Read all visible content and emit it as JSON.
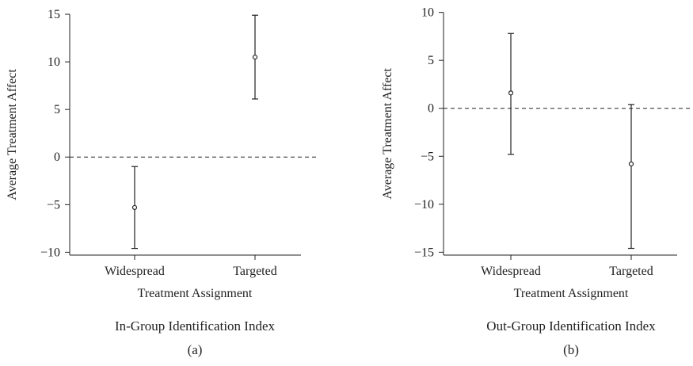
{
  "chart_data": [
    {
      "type": "errorbar",
      "xlabel": "Treatment Assignment",
      "ylabel": "Average Treatment Affect",
      "caption": "In-Group Identification Index",
      "sublabel": "(a)",
      "categories": [
        "Widespread",
        "Targeted"
      ],
      "points": [
        {
          "category": "Widespread",
          "estimate": -5.3,
          "lower": -9.6,
          "upper": -1.0
        },
        {
          "category": "Targeted",
          "estimate": 10.5,
          "upper": 14.9,
          "lower": 6.1
        }
      ],
      "yticks": [
        -10,
        -5,
        0,
        5,
        10,
        15
      ],
      "ylim": [
        -10.3,
        15.5
      ],
      "reference_line": 0,
      "grid": false
    },
    {
      "type": "errorbar",
      "xlabel": "Treatment Assignment",
      "ylabel": "Average Treatment Affect",
      "caption": "Out-Group Identification Index",
      "sublabel": "(b)",
      "categories": [
        "Widespread",
        "Targeted"
      ],
      "points": [
        {
          "category": "Widespread",
          "estimate": 1.6,
          "lower": -4.8,
          "upper": 7.8
        },
        {
          "category": "Targeted",
          "estimate": -5.8,
          "lower": -14.6,
          "upper": 0.4
        }
      ],
      "yticks": [
        -15,
        -10,
        -5,
        0,
        5,
        10
      ],
      "ylim": [
        -15.3,
        10.3
      ],
      "reference_line": 0,
      "grid": false
    }
  ]
}
